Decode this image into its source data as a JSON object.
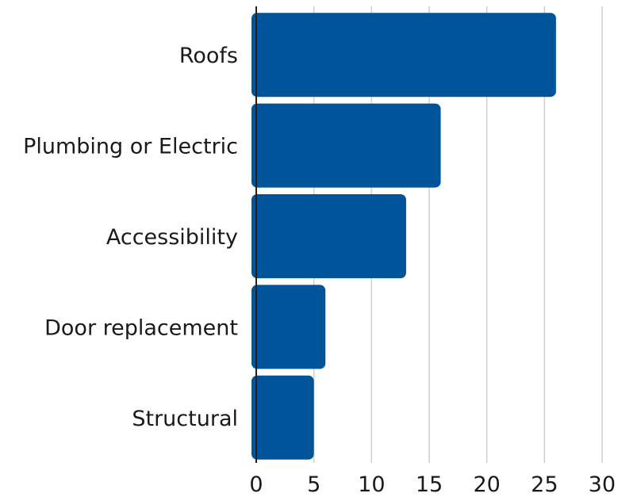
{
  "chart_data": {
    "type": "bar",
    "orientation": "horizontal",
    "categories": [
      "Roofs",
      "Plumbing or Electric",
      "Accessibility",
      "Door replacement",
      "Structural"
    ],
    "values": [
      26,
      16,
      13,
      6,
      5
    ],
    "xlim": [
      0,
      30
    ],
    "xticks": [
      0,
      5,
      10,
      15,
      20,
      25,
      30
    ],
    "grid": "vertical",
    "legend": "none",
    "bar_color": "#00549A"
  }
}
